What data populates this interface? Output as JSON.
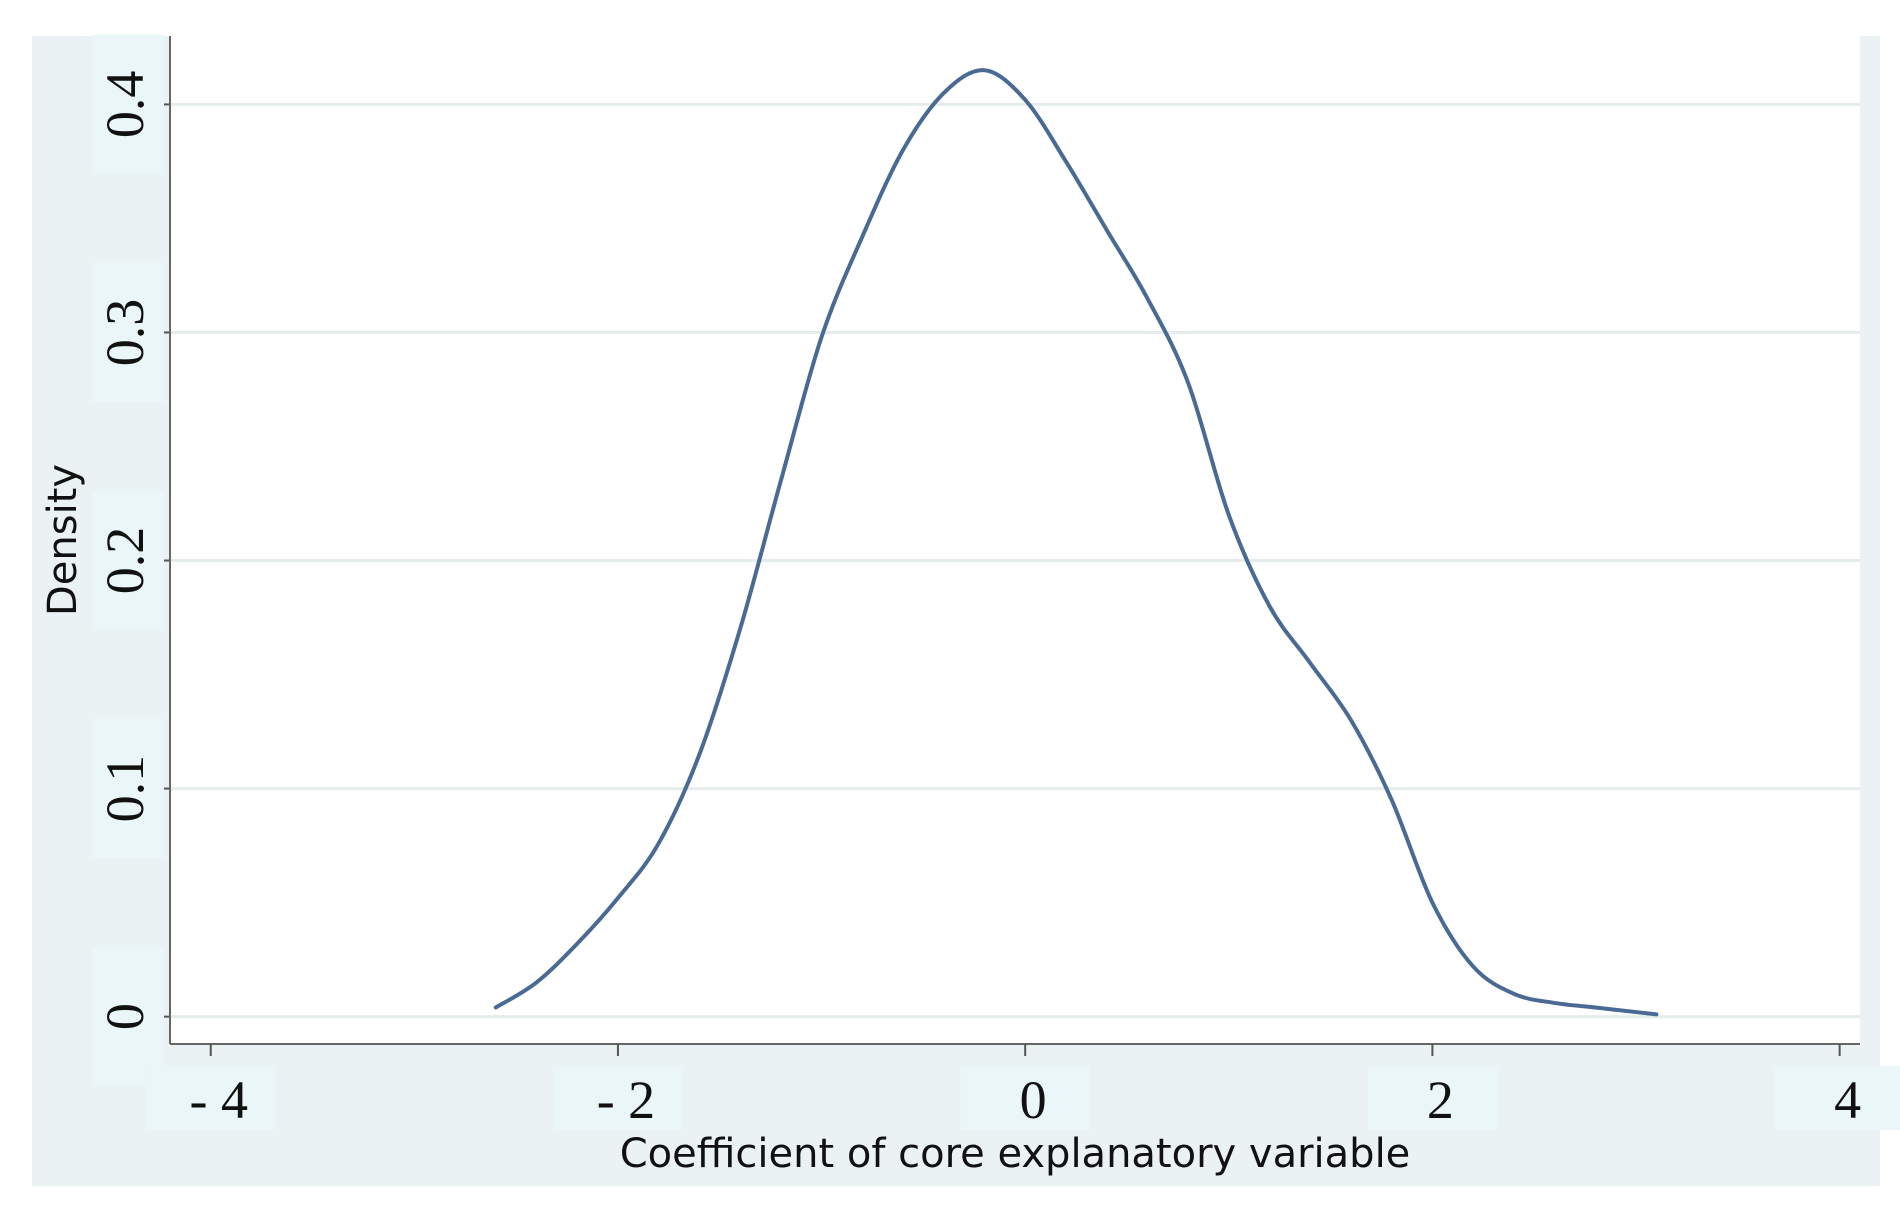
{
  "chart_data": {
    "type": "line",
    "title": "",
    "xlabel": "Coefficient of core explanatory variable",
    "ylabel": "Density",
    "xlim": [
      -4.2,
      4.1
    ],
    "ylim": [
      -0.012,
      0.43
    ],
    "grid": true,
    "x_ticks": [
      -4,
      -2,
      0,
      2,
      4
    ],
    "x_tick_labels": [
      "- 4",
      "- 2",
      "0",
      "2",
      "4"
    ],
    "y_ticks": [
      0,
      0.1,
      0.2,
      0.3,
      0.4
    ],
    "y_tick_labels": [
      "0",
      "0.1",
      "0.2",
      "0.3",
      "0.4"
    ],
    "series": [
      {
        "color": "#4a6a94",
        "x": [
          -2.6,
          -2.4,
          -2.2,
          -2.0,
          -1.8,
          -1.6,
          -1.4,
          -1.2,
          -1.0,
          -0.8,
          -0.6,
          -0.4,
          -0.2,
          0.0,
          0.2,
          0.4,
          0.6,
          0.8,
          1.0,
          1.2,
          1.4,
          1.6,
          1.8,
          2.0,
          2.2,
          2.4,
          2.6,
          2.8,
          3.0,
          3.1
        ],
        "y": [
          0.004,
          0.015,
          0.032,
          0.052,
          0.076,
          0.115,
          0.17,
          0.235,
          0.298,
          0.342,
          0.38,
          0.405,
          0.415,
          0.402,
          0.375,
          0.345,
          0.315,
          0.278,
          0.22,
          0.18,
          0.155,
          0.13,
          0.095,
          0.05,
          0.022,
          0.01,
          0.006,
          0.004,
          0.002,
          0.001
        ]
      }
    ]
  }
}
